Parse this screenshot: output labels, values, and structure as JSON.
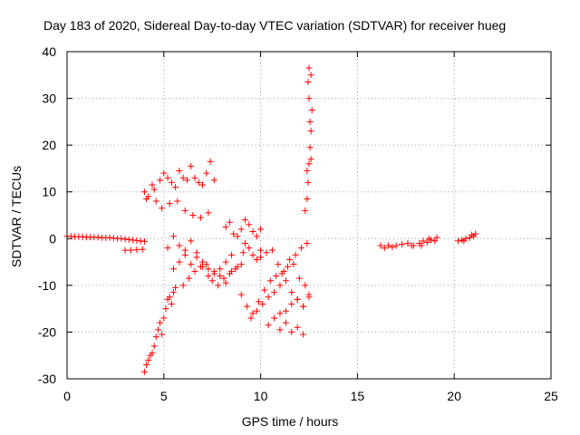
{
  "chart_data": {
    "type": "scatter",
    "title": "Day 183 of 2020, Sidereal Day-to-day VTEC variation (SDTVAR) for receiver hueg",
    "xlabel": "GPS time / hours",
    "ylabel": "SDTVAR / TECUs",
    "xlim": [
      0,
      25
    ],
    "ylim": [
      -30,
      40
    ],
    "xticks": [
      "0",
      "5",
      "10",
      "15",
      "20",
      "25"
    ],
    "yticks": [
      "-30",
      "-20",
      "-10",
      "0",
      "10",
      "20",
      "30",
      "40"
    ],
    "grid": true,
    "marker": "+",
    "series": [
      {
        "name": "SDTVAR",
        "color": "#ff0000",
        "x": [
          0.0,
          0.2,
          0.4,
          0.6,
          0.8,
          1.0,
          1.2,
          1.4,
          1.6,
          1.8,
          2.0,
          2.2,
          2.4,
          2.6,
          2.8,
          3.0,
          3.2,
          3.4,
          3.6,
          3.8,
          4.0,
          3.0,
          3.3,
          3.6,
          3.9,
          4.0,
          4.1,
          4.2,
          4.3,
          4.4,
          4.5,
          4.6,
          4.7,
          4.8,
          4.9,
          5.0,
          5.1,
          5.2,
          5.3,
          5.4,
          5.5,
          5.6,
          4.0,
          4.2,
          4.4,
          4.6,
          4.8,
          5.0,
          5.2,
          5.4,
          5.6,
          5.8,
          6.0,
          6.2,
          6.4,
          6.6,
          6.8,
          7.0,
          7.2,
          7.4,
          7.6,
          4.1,
          4.5,
          4.9,
          5.3,
          5.7,
          6.1,
          6.5,
          6.9,
          7.3,
          5.5,
          5.8,
          6.1,
          6.4,
          6.7,
          7.0,
          7.3,
          7.6,
          7.9,
          8.2,
          8.5,
          5.2,
          5.5,
          5.8,
          6.1,
          6.4,
          6.7,
          7.0,
          7.3,
          7.6,
          7.9,
          8.2,
          8.5,
          8.8,
          9.1,
          6.0,
          6.3,
          6.6,
          6.9,
          7.2,
          7.5,
          7.8,
          8.1,
          8.4,
          8.7,
          9.0,
          8.2,
          8.4,
          8.6,
          8.8,
          9.0,
          9.2,
          9.4,
          9.6,
          9.8,
          10.0,
          9.2,
          9.4,
          9.6,
          9.8,
          10.0,
          9.0,
          9.3,
          9.6,
          9.9,
          10.2,
          10.5,
          10.8,
          11.1,
          11.4,
          11.7,
          12.0,
          12.3,
          9.5,
          9.8,
          10.1,
          10.4,
          10.7,
          11.0,
          11.3,
          11.6,
          11.9,
          12.2,
          12.5,
          10.0,
          10.3,
          10.6,
          10.9,
          11.2,
          11.5,
          11.8,
          12.1,
          12.4,
          10.4,
          10.7,
          11.0,
          11.3,
          11.6,
          11.9,
          12.2,
          12.5,
          11.0,
          11.3,
          11.6,
          11.9,
          12.2,
          12.3,
          12.4,
          12.45,
          12.5,
          12.55,
          12.6,
          12.65,
          12.5,
          12.4,
          12.6,
          12.55,
          12.45,
          12.5,
          12.6,
          16.2,
          16.4,
          16.6,
          16.8,
          17.0,
          17.3,
          17.6,
          17.9,
          18.2,
          18.4,
          18.6,
          18.8,
          19.0,
          18.3,
          18.7,
          19.1,
          17.8,
          20.2,
          20.4,
          20.6,
          20.8,
          21.0,
          21.1,
          20.5,
          20.9
        ],
        "y": [
          0.5,
          0.5,
          0.4,
          0.4,
          0.4,
          0.3,
          0.3,
          0.3,
          0.3,
          0.2,
          0.2,
          0.2,
          0.1,
          0.0,
          0.0,
          -0.1,
          -0.2,
          -0.3,
          -0.4,
          -0.5,
          -0.6,
          -2.5,
          -2.5,
          -2.4,
          -2.3,
          -28.5,
          -27.0,
          -26.0,
          -25.0,
          -24.5,
          -23.0,
          -21.0,
          -19.5,
          -18.0,
          -20.5,
          -17.0,
          -15.0,
          -13.0,
          -12.5,
          -14.0,
          -11.5,
          -10.5,
          10.0,
          9.0,
          11.5,
          8.0,
          12.5,
          14.0,
          13.0,
          12.0,
          11.0,
          14.5,
          13.0,
          12.5,
          15.5,
          13.0,
          12.0,
          11.5,
          14.0,
          16.5,
          12.5,
          8.5,
          10.5,
          6.5,
          7.5,
          8.0,
          6.0,
          5.0,
          4.5,
          5.5,
          -6.5,
          -5.0,
          -3.5,
          -5.5,
          -4.0,
          -6.0,
          -8.0,
          -7.5,
          -6.5,
          -5.0,
          -3.5,
          -2.0,
          0.5,
          -1.5,
          -2.5,
          -0.5,
          -3.0,
          -5.0,
          -6.5,
          -7.0,
          -8.0,
          -9.5,
          -7.0,
          -6.0,
          -3.0,
          -10.0,
          -8.5,
          -7.0,
          -6.0,
          -5.5,
          -9.0,
          -10.0,
          -8.5,
          -7.5,
          -6.5,
          -5.5,
          2.5,
          3.5,
          1.0,
          0.5,
          2.0,
          4.0,
          3.0,
          1.5,
          0.5,
          2.0,
          -1.0,
          -2.0,
          -3.5,
          -4.5,
          -2.5,
          -12.0,
          -14.5,
          -16.0,
          -13.5,
          -11.0,
          -9.0,
          -8.0,
          -7.5,
          -6.0,
          -5.5,
          -8.5,
          -10.0,
          -17.0,
          -15.5,
          -14.0,
          -12.5,
          -11.5,
          -10.0,
          -9.0,
          -11.5,
          -13.0,
          -14.5,
          -12.0,
          -4.0,
          -3.0,
          -2.5,
          -5.5,
          -7.0,
          -4.5,
          -3.5,
          -2.0,
          -1.0,
          -18.5,
          -17.0,
          -16.0,
          -15.5,
          -14.0,
          -13.0,
          -14.5,
          -12.5,
          -19.5,
          -18.0,
          -20.0,
          -19.0,
          -20.5,
          6.0,
          8.5,
          12.0,
          16.0,
          19.5,
          23.0,
          27.5,
          30.0,
          14.5,
          17.0,
          25.0,
          33.5,
          36.5,
          35.0,
          -1.5,
          -2.0,
          -1.5,
          -1.8,
          -1.5,
          -1.2,
          -1.0,
          -1.5,
          -1.0,
          -0.5,
          -0.8,
          -0.3,
          -0.5,
          -1.5,
          0.0,
          0.2,
          -1.5,
          -0.5,
          -0.3,
          0.0,
          0.2,
          0.5,
          1.0,
          -0.5,
          0.8
        ]
      }
    ]
  }
}
